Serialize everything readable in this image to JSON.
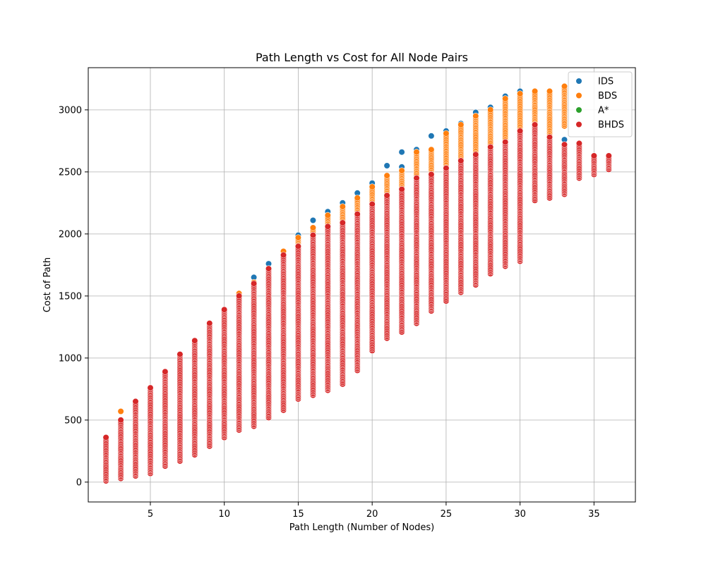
{
  "chart_data": {
    "type": "scatter",
    "title": "Path Length vs Cost for All Node Pairs",
    "xlabel": "Path Length (Number of Nodes)",
    "ylabel": "Cost of Path",
    "xlim": [
      0.8,
      37.8
    ],
    "ylim": [
      -160,
      3340
    ],
    "xticks": [
      5,
      10,
      15,
      20,
      25,
      30,
      35
    ],
    "yticks": [
      0,
      500,
      1000,
      1500,
      2000,
      2500,
      3000
    ],
    "grid": true,
    "legend_position": "top-right",
    "series": [
      {
        "name": "IDS",
        "color": "#1f77b4",
        "points": [
          [
            12,
            1650
          ],
          [
            13,
            1760
          ],
          [
            15,
            1990
          ],
          [
            16,
            2110
          ],
          [
            17,
            2180
          ],
          [
            18,
            2250
          ],
          [
            19,
            2330
          ],
          [
            20,
            2410
          ],
          [
            21,
            2550
          ],
          [
            22,
            2660
          ],
          [
            22,
            2540
          ],
          [
            23,
            2680
          ],
          [
            24,
            2790
          ],
          [
            25,
            2830
          ],
          [
            25,
            2730
          ],
          [
            26,
            2890
          ],
          [
            27,
            2980
          ],
          [
            28,
            3020
          ],
          [
            29,
            3110
          ],
          [
            30,
            3150
          ],
          [
            30,
            2950
          ],
          [
            31,
            2880
          ],
          [
            32,
            2920
          ],
          [
            32,
            2740
          ],
          [
            33,
            3080
          ],
          [
            33,
            2760
          ]
        ]
      },
      {
        "name": "BDS",
        "color": "#ff7f0e",
        "ranges": [
          [
            3,
            570,
            570
          ],
          [
            11,
            1450,
            1520
          ],
          [
            12,
            1500,
            1610
          ],
          [
            13,
            1600,
            1720
          ],
          [
            14,
            1700,
            1860
          ],
          [
            15,
            1800,
            1970
          ],
          [
            16,
            1900,
            2050
          ],
          [
            17,
            1990,
            2150
          ],
          [
            18,
            2080,
            2220
          ],
          [
            19,
            2150,
            2290
          ],
          [
            20,
            2200,
            2380
          ],
          [
            21,
            2250,
            2470
          ],
          [
            22,
            2310,
            2510
          ],
          [
            23,
            2370,
            2660
          ],
          [
            24,
            2420,
            2680
          ],
          [
            25,
            2470,
            2810
          ],
          [
            26,
            2520,
            2880
          ],
          [
            27,
            2570,
            2950
          ],
          [
            28,
            2620,
            3000
          ],
          [
            29,
            2670,
            3090
          ],
          [
            30,
            2720,
            3130
          ],
          [
            31,
            2790,
            3150
          ],
          [
            32,
            2800,
            3150
          ],
          [
            33,
            2870,
            3190
          ]
        ]
      },
      {
        "name": "A*",
        "color": "#2ca02c",
        "points": [
          [
            28,
            1860
          ],
          [
            31,
            2690
          ]
        ]
      },
      {
        "name": "BHDS",
        "color": "#d62728",
        "ranges": [
          [
            2,
            10,
            360
          ],
          [
            3,
            30,
            500
          ],
          [
            4,
            50,
            650
          ],
          [
            5,
            70,
            760
          ],
          [
            6,
            130,
            890
          ],
          [
            7,
            170,
            1030
          ],
          [
            8,
            220,
            1140
          ],
          [
            9,
            290,
            1280
          ],
          [
            10,
            360,
            1390
          ],
          [
            11,
            420,
            1500
          ],
          [
            12,
            450,
            1600
          ],
          [
            13,
            520,
            1720
          ],
          [
            14,
            580,
            1830
          ],
          [
            15,
            670,
            1900
          ],
          [
            16,
            700,
            1990
          ],
          [
            17,
            740,
            2060
          ],
          [
            18,
            790,
            2090
          ],
          [
            19,
            900,
            2160
          ],
          [
            20,
            1060,
            2240
          ],
          [
            21,
            1160,
            2310
          ],
          [
            22,
            1210,
            2360
          ],
          [
            23,
            1280,
            2450
          ],
          [
            24,
            1380,
            2480
          ],
          [
            25,
            1460,
            2530
          ],
          [
            26,
            1530,
            2590
          ],
          [
            27,
            1590,
            2640
          ],
          [
            28,
            1680,
            2700
          ],
          [
            29,
            1740,
            2740
          ],
          [
            30,
            1780,
            2830
          ],
          [
            31,
            2270,
            2880
          ],
          [
            32,
            2290,
            2780
          ],
          [
            33,
            2320,
            2720
          ],
          [
            34,
            2450,
            2730
          ],
          [
            35,
            2480,
            2630
          ],
          [
            36,
            2520,
            2630
          ]
        ]
      }
    ]
  }
}
